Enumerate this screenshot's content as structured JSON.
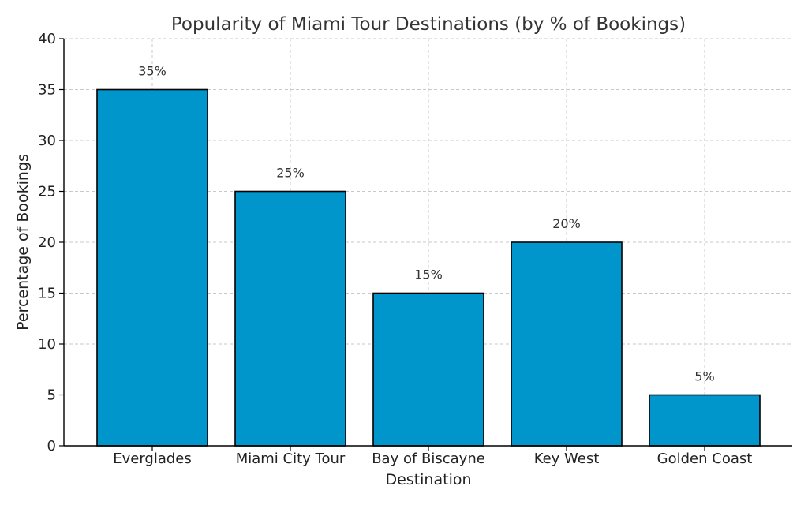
{
  "chart_data": {
    "type": "bar",
    "title": "Popularity of Miami Tour Destinations (by % of Bookings)",
    "xlabel": "Destination",
    "ylabel": "Percentage of Bookings",
    "categories": [
      "Everglades",
      "Miami City Tour",
      "Bay of Biscayne",
      "Key West",
      "Golden Coast"
    ],
    "values": [
      35,
      25,
      15,
      20,
      5
    ],
    "data_labels": [
      "35%",
      "25%",
      "15%",
      "20%",
      "5%"
    ],
    "ylim": [
      0,
      40
    ],
    "yticks": [
      0,
      5,
      10,
      15,
      20,
      25,
      30,
      35,
      40
    ],
    "grid": true,
    "bar_color": "#0096cc",
    "edge_color": "#000000"
  }
}
